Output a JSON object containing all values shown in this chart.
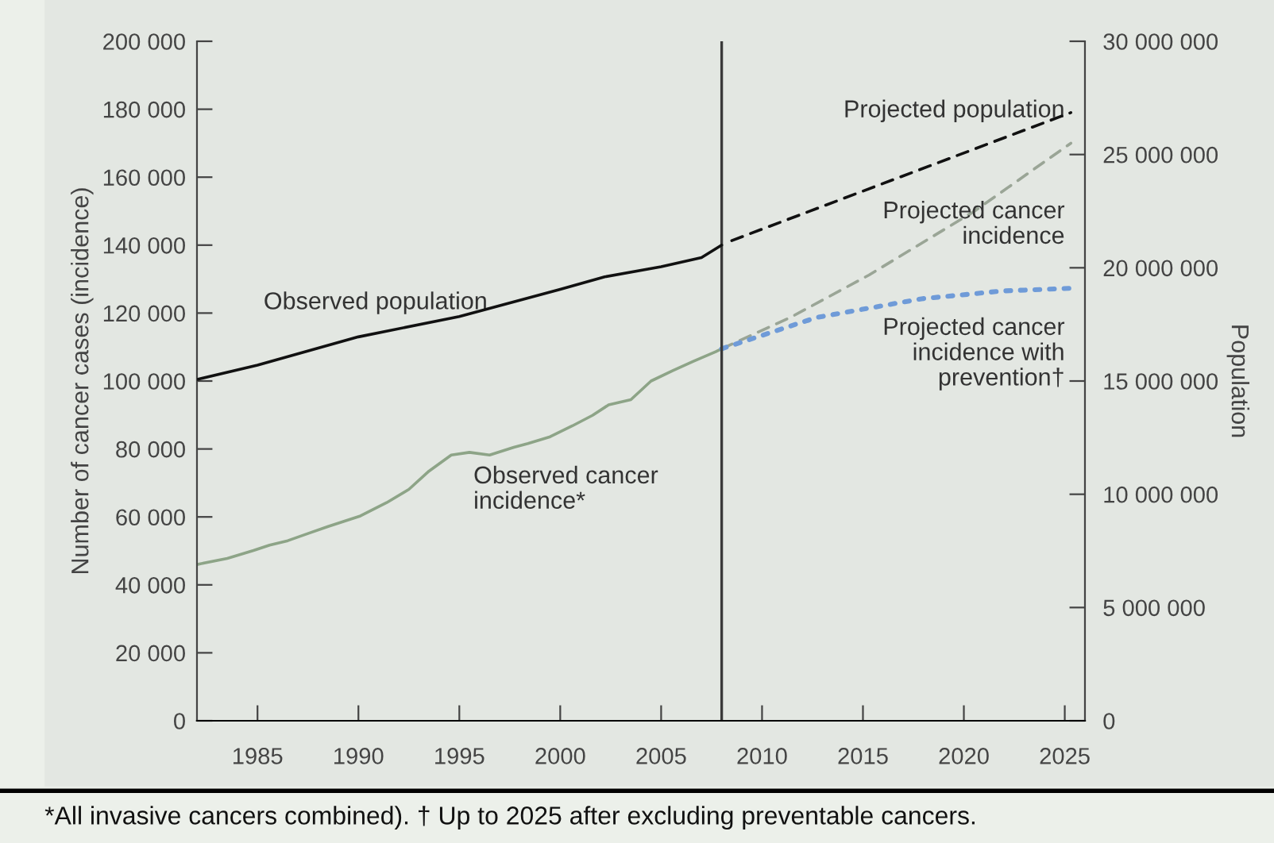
{
  "chart_data": {
    "type": "line",
    "ylabel": "Number of cancer cases (incidence)",
    "y2label": "Population",
    "xlim": [
      1982,
      2026
    ],
    "xticks": [
      1985,
      1990,
      1995,
      2000,
      2005,
      2010,
      2015,
      2020,
      2025
    ],
    "ylim": [
      0,
      200000
    ],
    "yticks": [
      0,
      {
        "value": 20000,
        "label": "20 000"
      },
      {
        "value": 40000,
        "label": "40 000"
      },
      {
        "value": 60000,
        "label": "60 000"
      },
      {
        "value": 80000,
        "label": "80 000"
      },
      {
        "value": 100000,
        "label": "100 000"
      },
      {
        "value": 120000,
        "label": "120 000"
      },
      {
        "value": 140000,
        "label": "140 000"
      },
      {
        "value": 160000,
        "label": "160 000"
      },
      {
        "value": 180000,
        "label": "180 000"
      },
      {
        "value": 200000,
        "label": "200 000"
      }
    ],
    "y2lim": [
      0,
      30000000
    ],
    "y2ticks": [
      0,
      {
        "value": 5000000,
        "label": "5 000 000"
      },
      {
        "value": 10000000,
        "label": "10 000 000"
      },
      {
        "value": 15000000,
        "label": "15 000 000"
      },
      {
        "value": 20000000,
        "label": "20 000 000"
      },
      {
        "value": 25000000,
        "label": "25 000 000"
      },
      {
        "value": 30000000,
        "label": "30 000 000"
      }
    ],
    "grid": false,
    "legend": false,
    "ref_lines": [
      {
        "axis": "x",
        "value": 2008,
        "label": null,
        "color": "#3a3a3a"
      }
    ],
    "series": [
      {
        "name": "Observed population",
        "color": "#111111",
        "axis": "y2",
        "line_style": "solid",
        "x": [
          1982,
          1985,
          1990,
          1995,
          2000,
          2002.2,
          2005,
          2007,
          2008
        ],
        "values": [
          15070000,
          15700000,
          16950000,
          17850000,
          19050000,
          19600000,
          20050000,
          20450000,
          21000000
        ]
      },
      {
        "name": "Projected population",
        "color": "#111111",
        "axis": "y2",
        "line_style": "dashed",
        "x": [
          2008.5,
          2025.3
        ],
        "values": [
          21200000,
          26850000
        ]
      },
      {
        "name": "Observed cancer incidence*",
        "color": "#8da487",
        "line_style": "solid",
        "x": [
          1982,
          1983.5,
          1984.8,
          1985.6,
          1986.5,
          1987.5,
          1988.5,
          1990.1,
          1991.4,
          1992.5,
          1993.5,
          1994.6,
          1995.5,
          1996.5,
          1997.7,
          1998.4,
          1999.5,
          2000.6,
          2001.6,
          2002.4,
          2003.5,
          2004.5,
          2005.6,
          2006.6,
          2007.7,
          2008
        ],
        "values": [
          46000,
          47800,
          50100,
          51700,
          53000,
          55100,
          57200,
          60300,
          64200,
          68100,
          73500,
          78200,
          79000,
          78200,
          80500,
          81600,
          83600,
          86800,
          89900,
          93000,
          94500,
          100000,
          103100,
          105800,
          108600,
          109500
        ]
      },
      {
        "name": "Projected cancer incidence",
        "color": "#9aa596",
        "line_style": "dashed",
        "x": [
          2008,
          2011.4,
          2015.3,
          2020.5,
          2025.3
        ],
        "values": [
          109500,
          118700,
          131200,
          149900,
          170000
        ]
      },
      {
        "name": "Projected cancer incidence with prevention†",
        "color": "#6f9bd8",
        "line_style": "dotted",
        "x": [
          2008,
          2012.7,
          2017.9,
          2021.9,
          2025.3
        ],
        "values": [
          109500,
          118700,
          124200,
          126500,
          127300
        ]
      }
    ],
    "annotations": [
      "*All invasive cancers combined). † Up to 2025 after excluding preventable cancers."
    ]
  }
}
